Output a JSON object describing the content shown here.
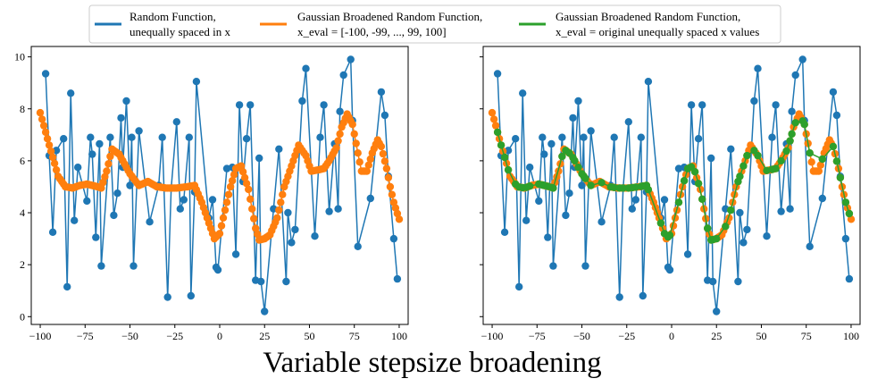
{
  "suptitle": "Variable stepsize broadening",
  "legend": {
    "placement": "top-center",
    "entries": [
      {
        "line1": "Random Function,",
        "line2": "unequally spaced in x",
        "color": "#1f77b4"
      },
      {
        "line1": "Gaussian Broadened Random Function,",
        "line2": "x_eval = [-100, -99, ..., 99, 100]",
        "color": "#ff7f0e"
      },
      {
        "line1": "Gaussian Broadened Random Function,",
        "line2": "x_eval = original unequally spaced x values",
        "color": "#2ca02c"
      }
    ]
  },
  "colors": {
    "random": "#1f77b4",
    "broadened_grid": "#ff7f0e",
    "broadened_orig": "#2ca02c"
  },
  "chart_data": [
    {
      "type": "line",
      "panel": "left",
      "xlim": [
        -105,
        105
      ],
      "ylim": [
        -0.3,
        10.4
      ],
      "xticks": [
        -100,
        -75,
        -50,
        -25,
        0,
        25,
        50,
        75,
        100
      ],
      "yticks": [
        0,
        2,
        4,
        6,
        8,
        10
      ],
      "show_ytick_labels": true,
      "grid": false,
      "series": [
        {
          "id": "random",
          "marker": "circle",
          "x": [
            -97,
            -95,
            -93,
            -91,
            -87,
            -85,
            -83,
            -81,
            -79,
            -74,
            -72,
            -71,
            -69,
            -67,
            -66,
            -61,
            -59,
            -57,
            -55,
            -54,
            -52,
            -50,
            -49,
            -48,
            -45,
            -39,
            -34,
            -32,
            -29,
            -27,
            -24,
            -22,
            -20,
            -17,
            -16,
            -14,
            -13,
            -6,
            -4,
            -2,
            -1,
            4,
            7,
            9,
            11,
            13,
            15,
            17,
            20,
            22,
            23,
            25,
            30,
            33,
            37,
            38,
            40,
            42,
            46,
            48,
            53,
            56,
            58,
            61,
            64,
            66,
            67,
            69,
            73,
            74,
            77,
            84,
            90,
            92,
            94,
            97,
            99
          ],
          "y": [
            9.35,
            6.2,
            3.25,
            6.4,
            6.85,
            1.15,
            8.6,
            3.7,
            5.75,
            4.45,
            6.9,
            6.25,
            3.05,
            6.65,
            1.95,
            6.9,
            3.9,
            4.75,
            7.65,
            5.75,
            8.3,
            5.05,
            6.9,
            1.95,
            7.15,
            3.65,
            5.05,
            6.9,
            0.75,
            4.95,
            7.5,
            4.15,
            4.5,
            6.9,
            0.8,
            4.8,
            9.05,
            3.8,
            4.5,
            1.9,
            1.8,
            5.7,
            5.75,
            2.4,
            8.15,
            5.2,
            6.85,
            8.15,
            1.4,
            6.1,
            1.35,
            0.2,
            4.15,
            6.45,
            1.35,
            4.0,
            2.85,
            3.35,
            8.3,
            9.55,
            3.1,
            6.9,
            8.15,
            4.05,
            6.65,
            4.15,
            7.9,
            9.3,
            9.9,
            7.55,
            2.7,
            4.55,
            8.65,
            7.75,
            5.4,
            3.0,
            1.45
          ]
        },
        {
          "id": "broadened_grid",
          "marker": "circle",
          "x_range": [
            -100,
            100,
            1
          ],
          "anchors_x": [
            -100,
            -95,
            -92,
            -90,
            -86,
            -82,
            -78,
            -74,
            -68,
            -66,
            -63,
            -60,
            -56,
            -50,
            -45,
            -40,
            -35,
            -30,
            -24,
            -18,
            -14,
            -10,
            -6,
            -3,
            0,
            3,
            6,
            9,
            12,
            16,
            20,
            22,
            25,
            28,
            32,
            36,
            40,
            44,
            48,
            51,
            55,
            58,
            61,
            65,
            68,
            71,
            74,
            77,
            79,
            82,
            85,
            88,
            90,
            93,
            95,
            97,
            100
          ],
          "anchors_y": [
            7.85,
            6.6,
            5.9,
            5.4,
            5.0,
            4.95,
            5.05,
            5.1,
            5.0,
            4.95,
            5.6,
            6.45,
            6.25,
            5.5,
            5.05,
            5.2,
            5.0,
            4.95,
            4.95,
            5.0,
            5.05,
            4.4,
            3.6,
            3.0,
            3.2,
            4.1,
            5.0,
            5.7,
            5.8,
            4.9,
            3.4,
            2.95,
            3.0,
            3.15,
            3.8,
            5.0,
            5.8,
            6.6,
            6.2,
            5.6,
            5.65,
            5.7,
            6.0,
            6.5,
            7.3,
            7.8,
            7.4,
            6.3,
            5.6,
            5.6,
            6.3,
            6.8,
            6.55,
            5.7,
            5.0,
            4.4,
            3.75
          ]
        }
      ]
    },
    {
      "type": "line",
      "panel": "right",
      "xlim": [
        -105,
        105
      ],
      "ylim": [
        -0.3,
        10.4
      ],
      "xticks": [
        -100,
        -75,
        -50,
        -25,
        0,
        25,
        50,
        75,
        100
      ],
      "yticks": [
        0,
        2,
        4,
        6,
        8,
        10
      ],
      "show_ytick_labels": false,
      "grid": false,
      "series": [
        {
          "id": "random",
          "same_as": "left"
        },
        {
          "id": "broadened_grid",
          "same_as": "left"
        },
        {
          "id": "broadened_orig",
          "marker": "circle",
          "x_from": "random",
          "y_from": "broadened_grid"
        }
      ]
    }
  ]
}
